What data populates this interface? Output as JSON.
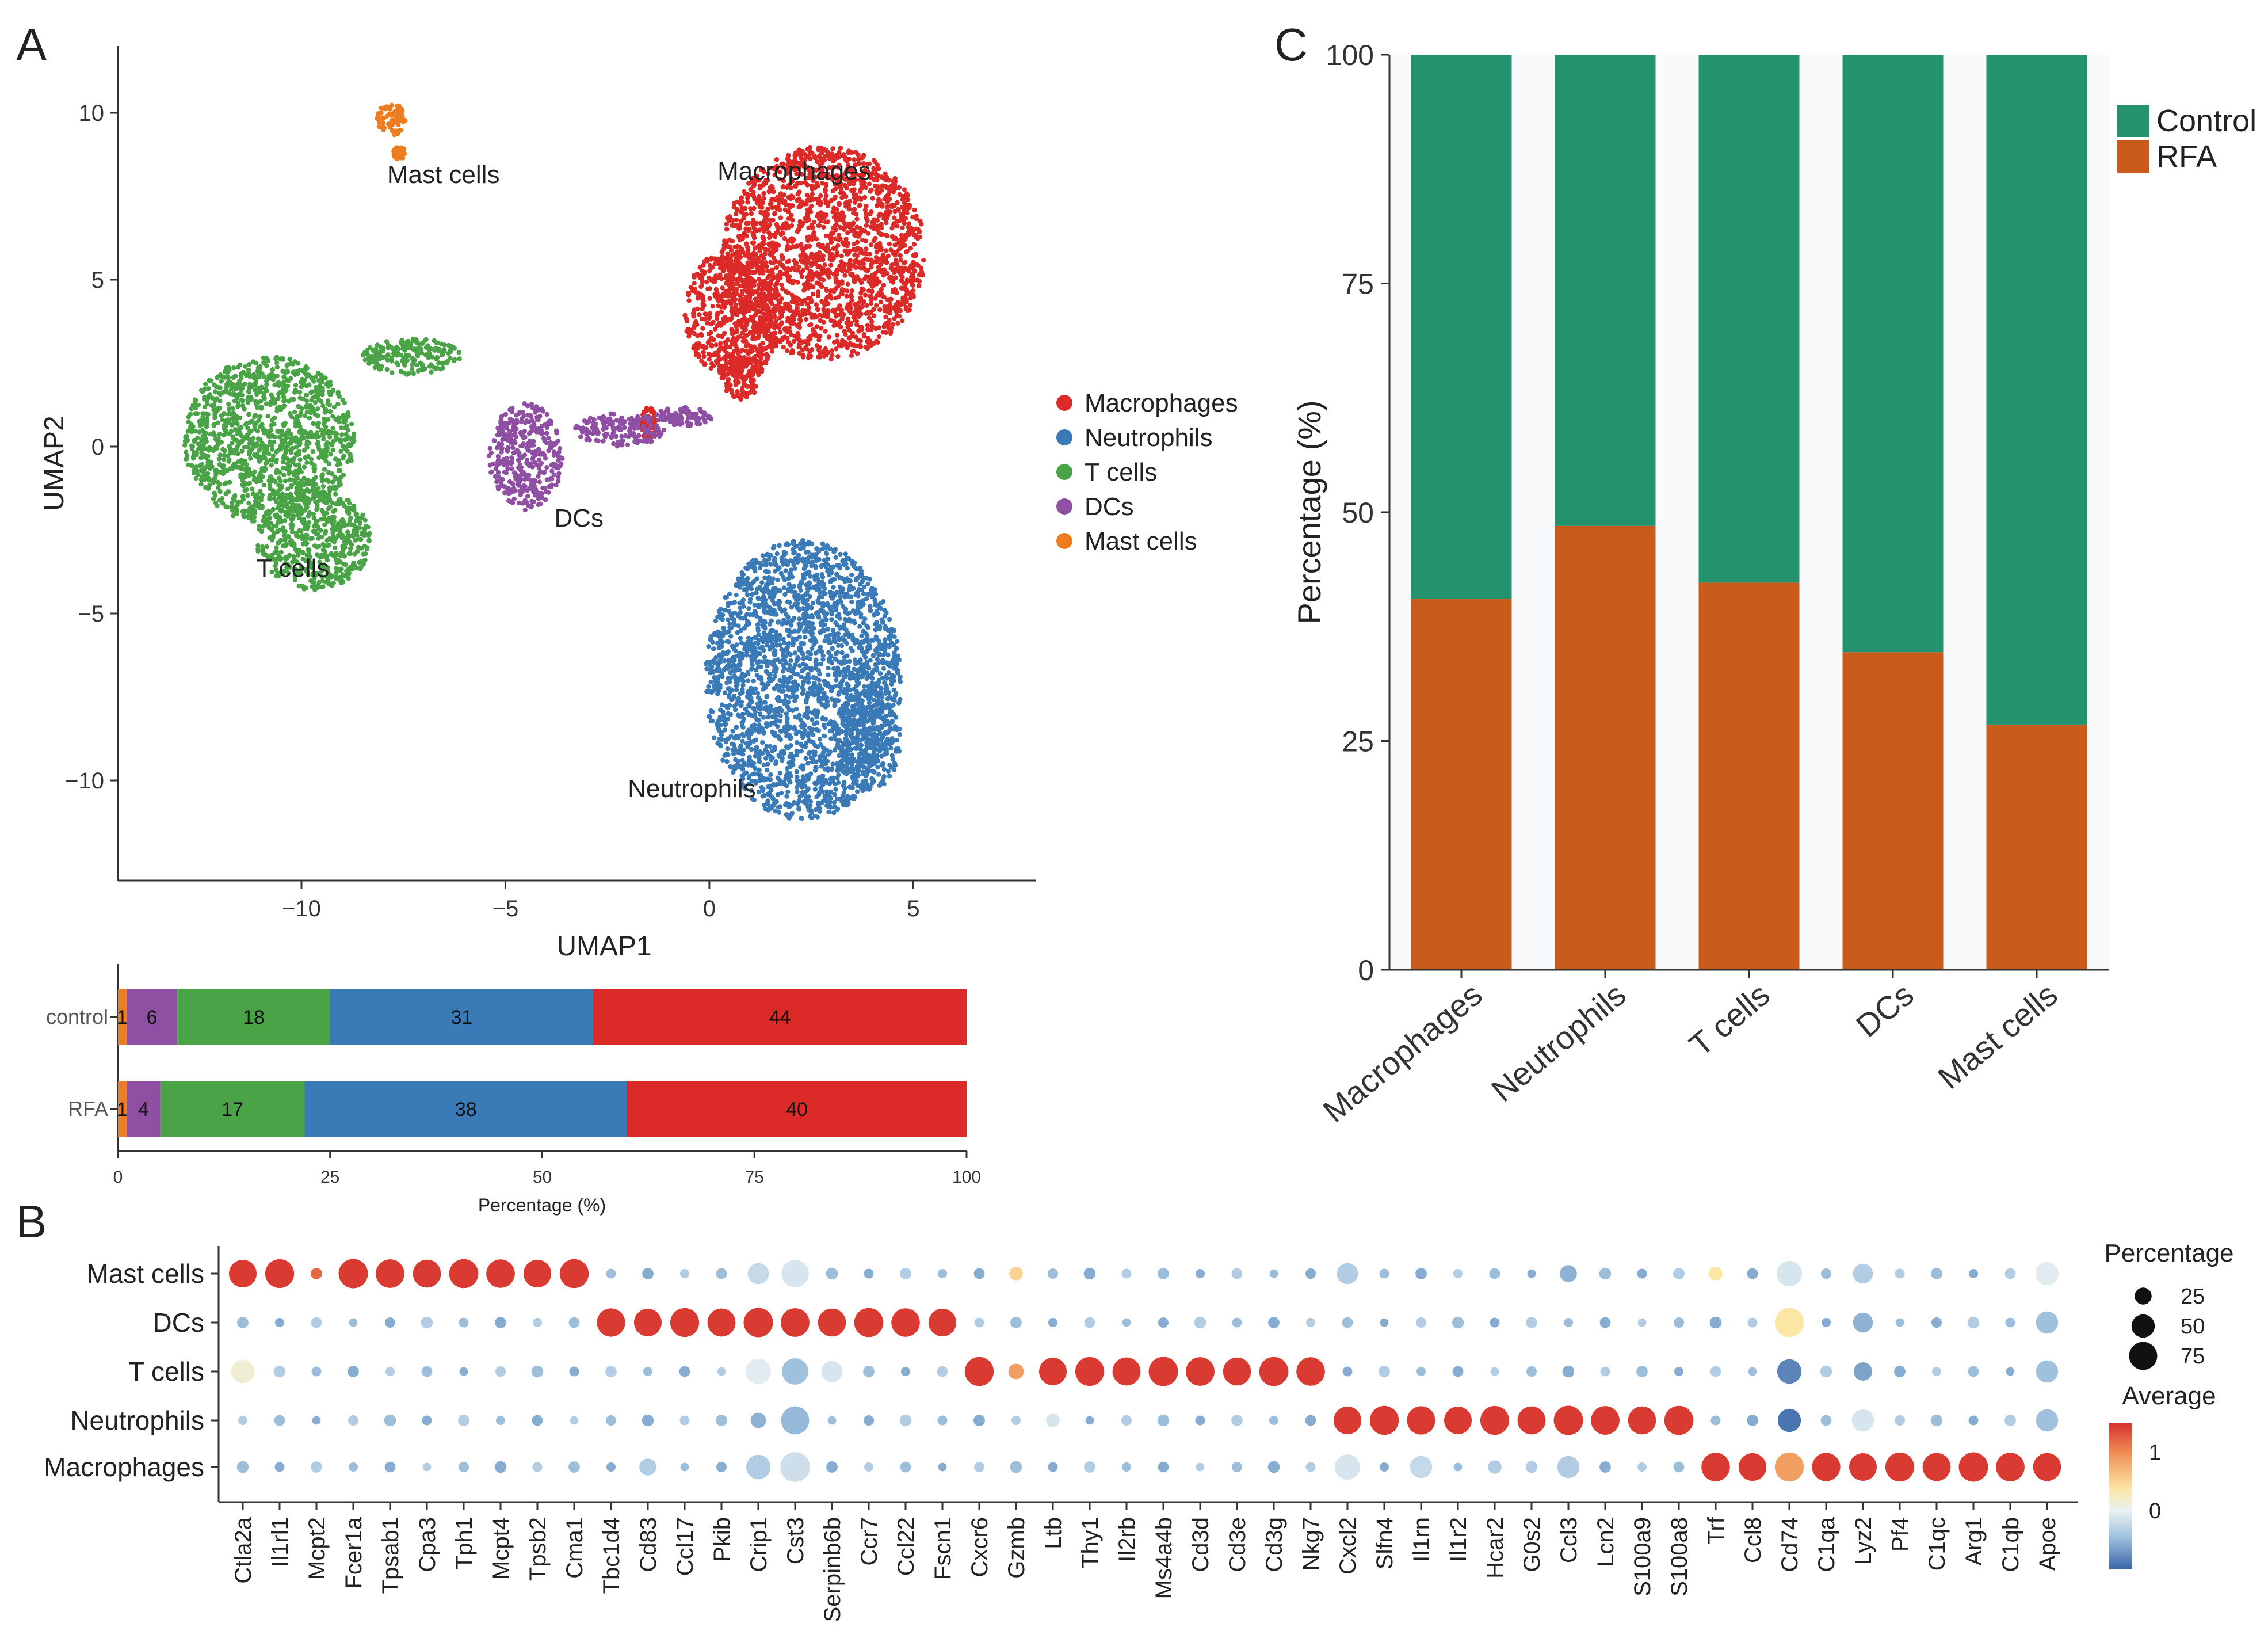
{
  "panels": {
    "A": "A",
    "B": "B",
    "C": "C"
  },
  "colors": {
    "Macrophages": "#dc2a28",
    "Neutrophils": "#3a7ab7",
    "T cells": "#4aa447",
    "DCs": "#8f4fa3",
    "Mast cells": "#ee7c21",
    "Control": "#23936f",
    "RFA": "#c85a1b"
  },
  "chart_data": [
    {
      "id": "umap",
      "type": "scatter",
      "xlabel": "UMAP1",
      "ylabel": "UMAP2",
      "xlim": [
        -14.5,
        8
      ],
      "ylim": [
        -13,
        12
      ],
      "xticks": [
        {
          "v": -10,
          "label": "−10"
        },
        {
          "v": -5,
          "label": "−5"
        },
        {
          "v": 0,
          "label": "0"
        },
        {
          "v": 5,
          "label": "5"
        }
      ],
      "yticks": [
        {
          "v": 10,
          "label": "10"
        },
        {
          "v": 5,
          "label": "5"
        },
        {
          "v": 0,
          "label": "0"
        },
        {
          "v": -5,
          "label": "−5"
        },
        {
          "v": -10,
          "label": "−10"
        }
      ],
      "clusters": [
        {
          "name": "Macrophages",
          "label": "Macrophages",
          "label_xy": [
            0.2,
            8
          ],
          "regions": [
            [
              [
                2.8,
                5.8
              ],
              [
                2.5,
                3.2
              ]
            ],
            [
              [
                0.6,
                4.0
              ],
              [
                1.2,
                2.0
              ]
            ],
            [
              [
                0.8,
                2.2
              ],
              [
                0.5,
                0.8
              ]
            ],
            [
              [
                -1.5,
                0.7
              ],
              [
                0.2,
                0.5
              ]
            ]
          ]
        },
        {
          "name": "Neutrophils",
          "label": "Neutrophils",
          "label_xy": [
            -2.0,
            -10.5
          ],
          "regions": [
            [
              [
                2.3,
                -7.0
              ],
              [
                2.4,
                4.2
              ]
            ],
            [
              [
                3.9,
                -8.8
              ],
              [
                0.8,
                1.5
              ]
            ]
          ]
        },
        {
          "name": "T cells",
          "label": "T cells",
          "label_xy": [
            -11.1,
            -3.9
          ],
          "regions": [
            [
              [
                -10.8,
                0.2
              ],
              [
                2.1,
                2.5
              ]
            ],
            [
              [
                -9.7,
                -2.8
              ],
              [
                1.4,
                1.5
              ]
            ],
            [
              [
                -7.3,
                2.7
              ],
              [
                1.2,
                0.55
              ]
            ]
          ]
        },
        {
          "name": "DCs",
          "label": "DCs",
          "label_xy": [
            -3.8,
            -2.4
          ],
          "regions": [
            [
              [
                -4.5,
                -0.3
              ],
              [
                0.9,
                1.6
              ]
            ],
            [
              [
                -2.2,
                0.5
              ],
              [
                1.1,
                0.5
              ]
            ],
            [
              [
                -0.6,
                0.9
              ],
              [
                0.7,
                0.3
              ]
            ]
          ]
        },
        {
          "name": "Mast cells",
          "label": "Mast cells",
          "label_xy": [
            -7.9,
            7.9
          ],
          "regions": [
            [
              [
                -7.8,
                9.8
              ],
              [
                0.35,
                0.5
              ]
            ],
            [
              [
                -7.6,
                8.8
              ],
              [
                0.15,
                0.2
              ]
            ]
          ]
        }
      ],
      "legend": [
        "Macrophages",
        "Neutrophils",
        "T cells",
        "DCs",
        "Mast cells"
      ]
    },
    {
      "id": "composition",
      "type": "bar",
      "orientation": "horizontal-stacked",
      "xlabel": "Percentage (%)",
      "xticks": [
        0,
        25,
        50,
        75,
        100
      ],
      "categories": [
        "control",
        "RFA"
      ],
      "series": [
        {
          "name": "Mast cells",
          "values": [
            1,
            1
          ]
        },
        {
          "name": "DCs",
          "values": [
            6,
            4
          ]
        },
        {
          "name": "T cells",
          "values": [
            18,
            17
          ]
        },
        {
          "name": "Neutrophils",
          "values": [
            31,
            38
          ]
        },
        {
          "name": "Macrophages",
          "values": [
            44,
            40
          ]
        }
      ]
    },
    {
      "id": "proportions",
      "type": "bar",
      "orientation": "vertical-stacked",
      "ylabel": "Percentage (%)",
      "ylim": [
        0,
        100
      ],
      "yticks": [
        0,
        25,
        50,
        75,
        100
      ],
      "categories": [
        "Macrophages",
        "Neutrophils",
        "T cells",
        "DCs",
        "Mast cells"
      ],
      "series": [
        {
          "name": "RFA",
          "values": [
            40.5,
            48.5,
            42.3,
            34.7,
            26.8
          ]
        },
        {
          "name": "Control",
          "values": [
            59.5,
            51.5,
            57.7,
            65.3,
            73.2
          ]
        }
      ],
      "legend": [
        "Control",
        "RFA"
      ]
    },
    {
      "id": "dotplot",
      "type": "scatter",
      "subtype": "dotplot",
      "rows": [
        "Mast cells",
        "DCs",
        "T cells",
        "Neutrophils",
        "Macrophages"
      ],
      "genes": [
        "Ctla2a",
        "Il1rl1",
        "Mcpt2",
        "Fcer1a",
        "Tpsab1",
        "Cpa3",
        "Tph1",
        "Mcpt4",
        "Tpsb2",
        "Cma1",
        "Tbc1d4",
        "Cd83",
        "Ccl17",
        "Pkib",
        "Crip1",
        "Cst3",
        "Serpinb6b",
        "Ccr7",
        "Ccl22",
        "Fscn1",
        "Cxcr6",
        "Gzmb",
        "Ltb",
        "Thy1",
        "Il2rb",
        "Ms4a4b",
        "Cd3d",
        "Cd3e",
        "Cd3g",
        "Nkg7",
        "Cxcl2",
        "Slfn4",
        "Il1rn",
        "Il1r2",
        "Hcar2",
        "G0s2",
        "Ccl3",
        "Lcn2",
        "S100a9",
        "S100a8",
        "Trf",
        "Ccl8",
        "Cd74",
        "C1qa",
        "Lyz2",
        "Pf4",
        "C1qc",
        "Arg1",
        "C1qb",
        "Apoe"
      ],
      "marker_groups": [
        {
          "row": "Mast cells",
          "start": 0,
          "end": 9
        },
        {
          "row": "DCs",
          "start": 10,
          "end": 19
        },
        {
          "row": "T cells",
          "start": 20,
          "end": 29
        },
        {
          "row": "Neutrophils",
          "start": 30,
          "end": 39
        },
        {
          "row": "Macrophages",
          "start": 40,
          "end": 49
        }
      ],
      "overrides": [
        {
          "row": "T cells",
          "gene": "Ctla2a",
          "pct": 50,
          "avg": 0.2
        },
        {
          "row": "Mast cells",
          "gene": "Mcpt2",
          "pct": 10,
          "avg": 1.2
        },
        {
          "row": "T cells",
          "gene": "Gzmb",
          "pct": 20,
          "avg": 0.9
        },
        {
          "row": "Mast cells",
          "gene": "Gzmb",
          "pct": 15,
          "avg": 0.6
        },
        {
          "row": "Mast cells",
          "gene": "Crip1",
          "pct": 40,
          "avg": -0.2
        },
        {
          "row": "T cells",
          "gene": "Crip1",
          "pct": 60,
          "avg": -0.05
        },
        {
          "row": "Neutrophils",
          "gene": "Crip1",
          "pct": 20,
          "avg": -0.5
        },
        {
          "row": "Macrophages",
          "gene": "Crip1",
          "pct": 55,
          "avg": -0.3
        },
        {
          "row": "Mast cells",
          "gene": "Cst3",
          "pct": 70,
          "avg": -0.1
        },
        {
          "row": "T cells",
          "gene": "Cst3",
          "pct": 65,
          "avg": -0.4
        },
        {
          "row": "Neutrophils",
          "gene": "Cst3",
          "pct": 75,
          "avg": -0.45
        },
        {
          "row": "Macrophages",
          "gene": "Cst3",
          "pct": 85,
          "avg": -0.15
        },
        {
          "row": "T cells",
          "gene": "Serpinb6b",
          "pct": 40,
          "avg": -0.1
        },
        {
          "row": "Macrophages",
          "gene": "Cd83",
          "pct": 25,
          "avg": -0.3
        },
        {
          "row": "Neutrophils",
          "gene": "Ltb",
          "pct": 15,
          "avg": -0.1
        },
        {
          "row": "Mast cells",
          "gene": "Cxcl2",
          "pct": 40,
          "avg": -0.3
        },
        {
          "row": "Macrophages",
          "gene": "Cxcl2",
          "pct": 60,
          "avg": -0.1
        },
        {
          "row": "Macrophages",
          "gene": "Il1rn",
          "pct": 45,
          "avg": -0.2
        },
        {
          "row": "Mast cells",
          "gene": "Ccl3",
          "pct": 25,
          "avg": -0.5
        },
        {
          "row": "Macrophages",
          "gene": "Ccl3",
          "pct": 45,
          "avg": -0.3
        },
        {
          "row": "Macrophages",
          "gene": "Hcar2",
          "pct": 15,
          "avg": -0.3
        },
        {
          "row": "Mast cells",
          "gene": "Trf",
          "pct": 15,
          "avg": 0.5
        },
        {
          "row": "Mast cells",
          "gene": "Cd74",
          "pct": 60,
          "avg": -0.1
        },
        {
          "row": "DCs",
          "gene": "Cd74",
          "pct": 80,
          "avg": 0.5
        },
        {
          "row": "T cells",
          "gene": "Cd74",
          "pct": 55,
          "avg": -0.8
        },
        {
          "row": "Neutrophils",
          "gene": "Cd74",
          "pct": 50,
          "avg": -0.9
        },
        {
          "row": "Macrophages",
          "gene": "Cd74",
          "pct": 80,
          "avg": 0.9
        },
        {
          "row": "Mast cells",
          "gene": "Lyz2",
          "pct": 35,
          "avg": -0.3
        },
        {
          "row": "DCs",
          "gene": "Lyz2",
          "pct": 35,
          "avg": -0.5
        },
        {
          "row": "T cells",
          "gene": "Lyz2",
          "pct": 30,
          "avg": -0.6
        },
        {
          "row": "Neutrophils",
          "gene": "Lyz2",
          "pct": 45,
          "avg": -0.1
        },
        {
          "row": "Mast cells",
          "gene": "Apoe",
          "pct": 50,
          "avg": -0.05
        },
        {
          "row": "DCs",
          "gene": "Apoe",
          "pct": 45,
          "avg": -0.4
        },
        {
          "row": "T cells",
          "gene": "Apoe",
          "pct": 45,
          "avg": -0.4
        },
        {
          "row": "Neutrophils",
          "gene": "Apoe",
          "pct": 45,
          "avg": -0.4
        }
      ],
      "legend_pct": {
        "title": "Percentage",
        "values": [
          25,
          50,
          75
        ]
      },
      "legend_avg": {
        "title": "Average",
        "ticks": [
          {
            "v": 1,
            "label": "1"
          },
          {
            "v": 0,
            "label": "0"
          }
        ],
        "range": [
          -1,
          1.5
        ]
      }
    }
  ]
}
